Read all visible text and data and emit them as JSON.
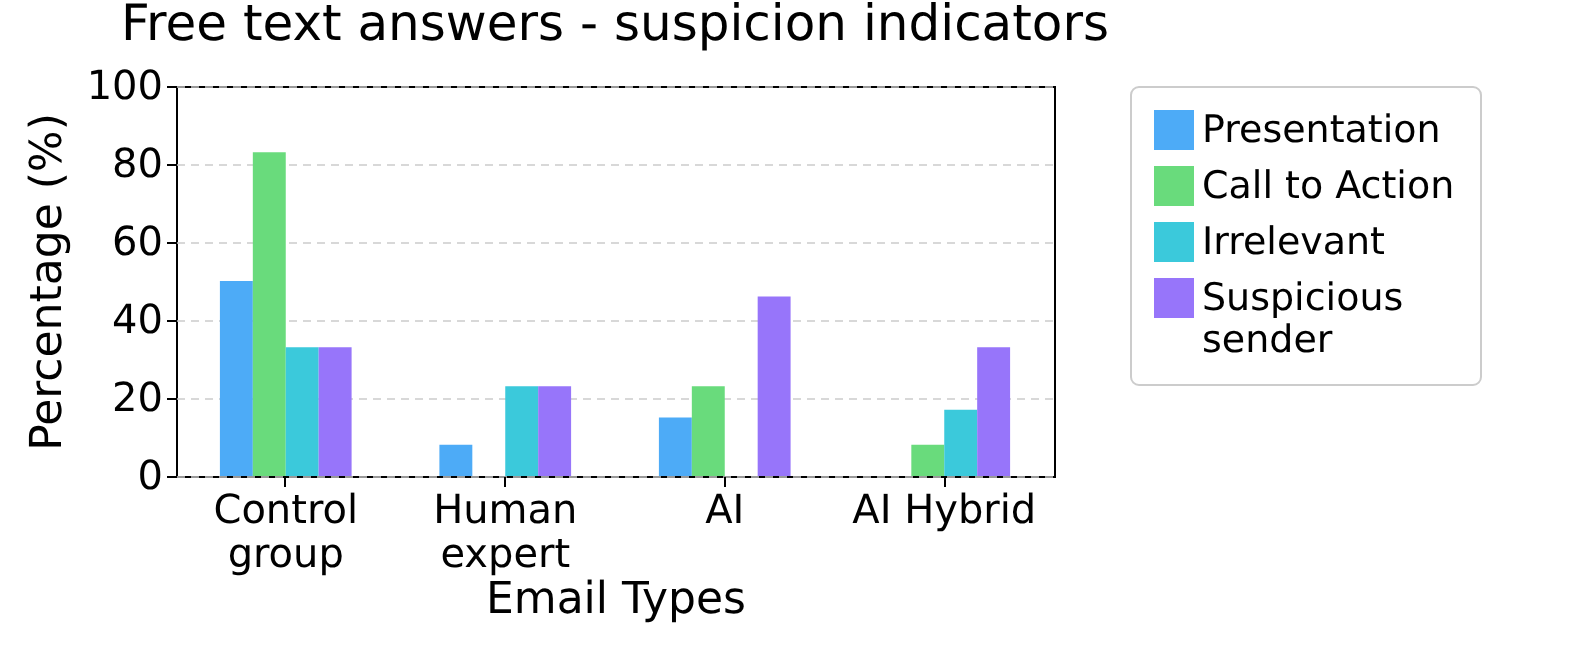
{
  "chart_data": {
    "type": "bar",
    "title": "Free text answers - suspicion indicators",
    "xlabel": "Email Types",
    "ylabel": "Percentage (%)",
    "categories": [
      "Control group",
      "Human expert",
      "AI",
      "AI Hybrid"
    ],
    "series": [
      {
        "name": "Presentation",
        "color": "#4dabf7",
        "values": [
          50,
          8,
          15,
          0
        ]
      },
      {
        "name": "Call to Action",
        "color": "#69db7c",
        "values": [
          83,
          0,
          23,
          8
        ]
      },
      {
        "name": "Irrelevant",
        "color": "#3bc9db",
        "values": [
          33,
          23,
          0,
          17
        ]
      },
      {
        "name": "Suspicious sender",
        "color": "#9775fa",
        "values": [
          33,
          23,
          46,
          33
        ]
      }
    ],
    "ylim": [
      0,
      100
    ],
    "yticks": [
      0,
      20,
      40,
      60,
      80,
      100
    ],
    "grid": "y",
    "legend": "right"
  }
}
